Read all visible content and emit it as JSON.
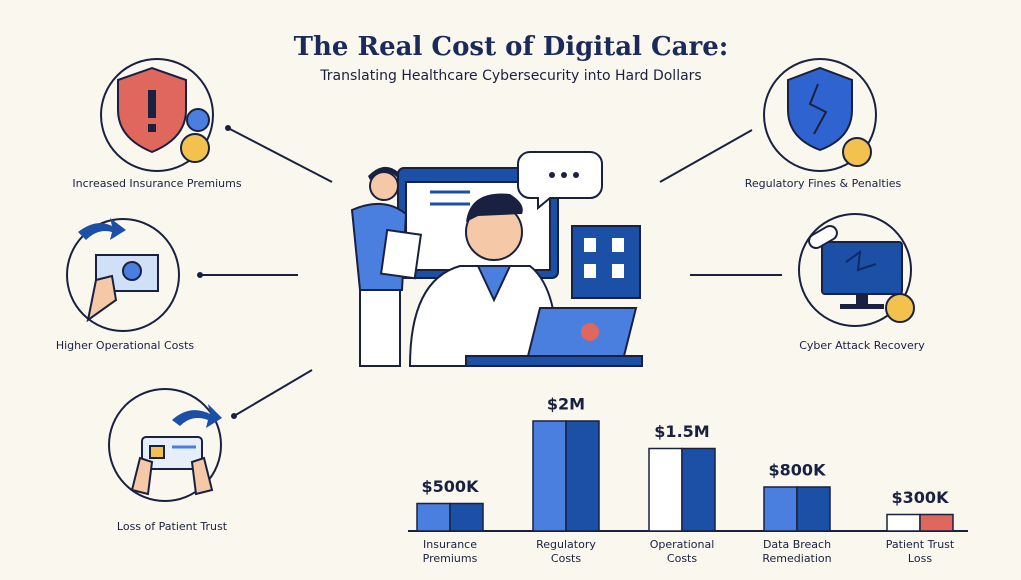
{
  "header": {
    "title": "The Real Cost of Digital Care:",
    "subtitle": "Translating Healthcare Cybersecurity into Hard Dollars"
  },
  "callouts": {
    "left": [
      "Increased Insurance Premiums",
      "Higher Operational Costs",
      "Loss of Patient Trust"
    ],
    "right": [
      "Regulatory Fines & Penalties",
      "Cyber Attack Recovery"
    ]
  },
  "chart_data": {
    "type": "bar",
    "categories": [
      "Insurance Premiums",
      "Regulatory Costs",
      "Operational Costs",
      "Data Breach Remediation",
      "Patient Trust Loss"
    ],
    "values": [
      500000,
      2000000,
      1500000,
      800000,
      300000
    ],
    "value_labels": [
      "$500K",
      "$2M",
      "$1.5M",
      "$800K",
      "$300K"
    ],
    "colors": [
      [
        "#4a7fe0",
        "#1c4fa6"
      ],
      [
        "#4a7fe0",
        "#1c4fa6"
      ],
      [
        "#ffffff",
        "#1c4fa6"
      ],
      [
        "#4a7fe0",
        "#1c4fa6"
      ],
      [
        "#ffffff",
        "#e0675e"
      ]
    ]
  }
}
